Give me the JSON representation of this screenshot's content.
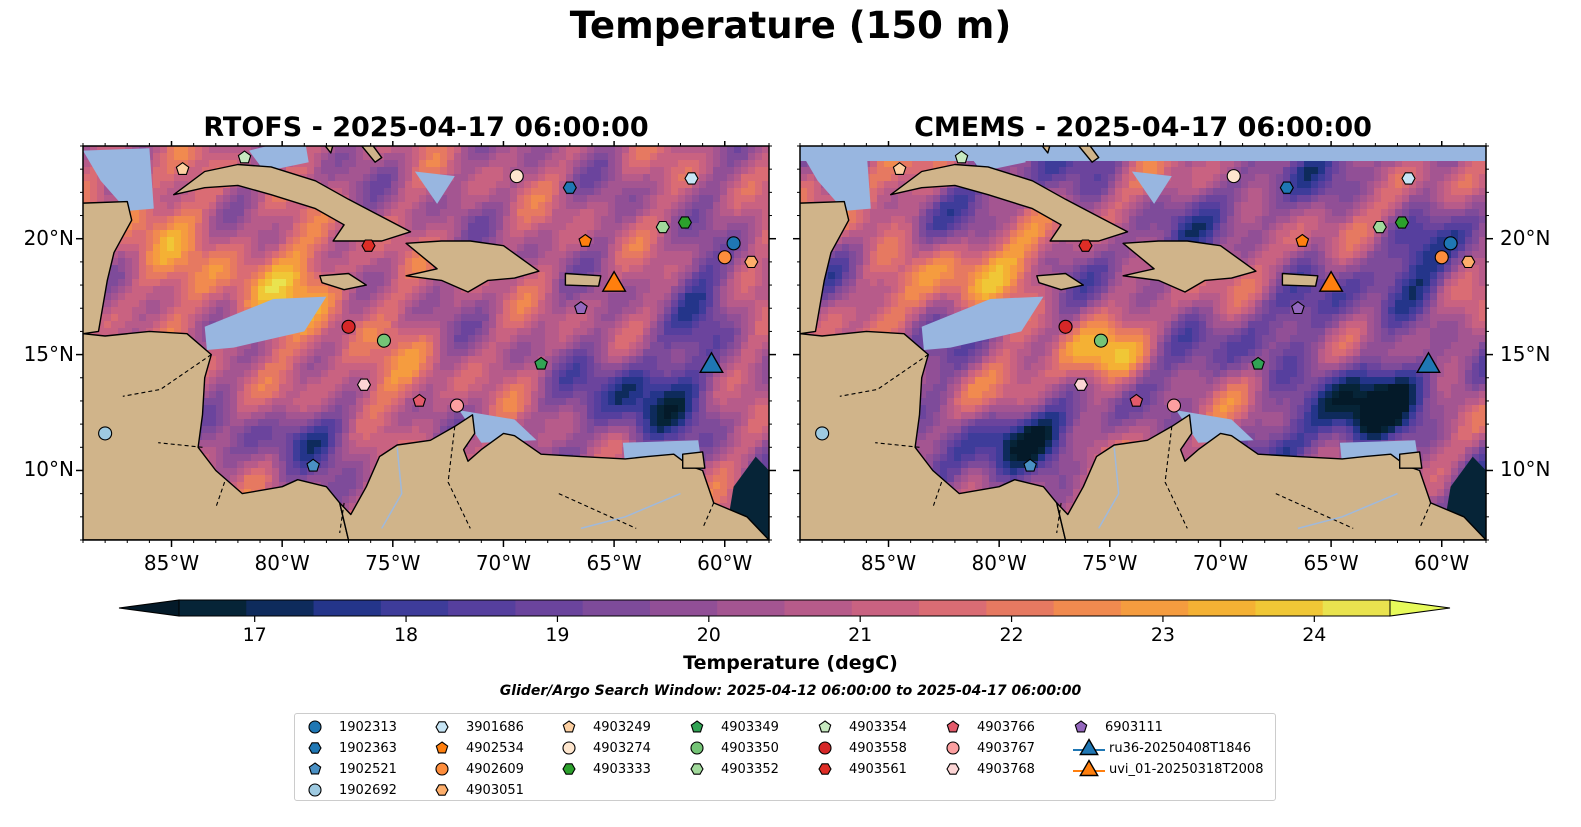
{
  "figure": {
    "suptitle": "Temperature (150 m)",
    "colorbar_label": "Temperature (degC)",
    "search_window": "Glider/Argo Search Window: 2025-04-12 06:00:00 to 2025-04-17 06:00:00"
  },
  "chart_data": [
    {
      "type": "heatmap",
      "title": "RTOFS - 2025-04-17 06:00:00",
      "x_ticks": [
        "85°W",
        "80°W",
        "75°W",
        "70°W",
        "65°W",
        "60°W"
      ],
      "y_ticks": [
        "20°N",
        "15°N",
        "10°N"
      ],
      "xlim": [
        -89,
        -58
      ],
      "ylim": [
        7,
        24
      ],
      "colormap": "thermal",
      "color_range": [
        16.5,
        24.5
      ],
      "grid": false
    },
    {
      "type": "heatmap",
      "title": "CMEMS - 2025-04-17 06:00:00",
      "x_ticks": [
        "85°W",
        "80°W",
        "75°W",
        "70°W",
        "65°W",
        "60°W"
      ],
      "y_ticks": [
        "20°N",
        "15°N",
        "10°N"
      ],
      "xlim": [
        -89,
        -58
      ],
      "ylim": [
        7,
        24
      ],
      "colormap": "thermal",
      "color_range": [
        16.5,
        24.5
      ],
      "grid": false
    }
  ],
  "colorbar": {
    "ticks": [
      "17",
      "18",
      "19",
      "20",
      "21",
      "22",
      "23",
      "24"
    ],
    "tick_values": [
      17,
      18,
      19,
      20,
      21,
      22,
      23,
      24
    ],
    "range": [
      16.5,
      24.5
    ],
    "colors": [
      "#062437",
      "#0e2b5c",
      "#24358a",
      "#3e3c9a",
      "#563f9e",
      "#6b449d",
      "#7e4b9a",
      "#914f96",
      "#a45591",
      "#b75b8a",
      "#c96281",
      "#da6c74",
      "#e67961",
      "#f18a4f",
      "#f59c3f",
      "#f4b134",
      "#f0c736",
      "#e9e34f"
    ],
    "extend_low": "#041a29",
    "extend_high": "#e7fa5a"
  },
  "map_colors": {
    "land": "#d0b48a",
    "shelf": "#98b6e0",
    "deep_cold": "#062437"
  },
  "legend": [
    {
      "name": "1902313",
      "marker": "circle",
      "color": "#1f77b4"
    },
    {
      "name": "1902363",
      "marker": "hexagon",
      "color": "#1f77b4"
    },
    {
      "name": "1902521",
      "marker": "pentagon",
      "color": "#4a90c4"
    },
    {
      "name": "1902692",
      "marker": "circle",
      "color": "#9ecae1"
    },
    {
      "name": "3901686",
      "marker": "hexagon",
      "color": "#c6e5f5"
    },
    {
      "name": "4902534",
      "marker": "pentagon",
      "color": "#ff7f0e"
    },
    {
      "name": "4902609",
      "marker": "circle",
      "color": "#fd8d3c"
    },
    {
      "name": "4903051",
      "marker": "hexagon",
      "color": "#fdae6b"
    },
    {
      "name": "4903249",
      "marker": "pentagon",
      "color": "#fdd0a2"
    },
    {
      "name": "4903274",
      "marker": "circle",
      "color": "#fee6ce"
    },
    {
      "name": "4903333",
      "marker": "hexagon",
      "color": "#2ca02c"
    },
    {
      "name": "4903349",
      "marker": "pentagon",
      "color": "#31a354"
    },
    {
      "name": "4903350",
      "marker": "circle",
      "color": "#74c476"
    },
    {
      "name": "4903352",
      "marker": "hexagon",
      "color": "#a1d99b"
    },
    {
      "name": "4903354",
      "marker": "pentagon",
      "color": "#c7e9c0"
    },
    {
      "name": "4903558",
      "marker": "circle",
      "color": "#d62728"
    },
    {
      "name": "4903561",
      "marker": "hexagon",
      "color": "#de2d26"
    },
    {
      "name": "4903766",
      "marker": "pentagon",
      "color": "#e35a6a"
    },
    {
      "name": "4903767",
      "marker": "circle",
      "color": "#fc9fa0"
    },
    {
      "name": "4903768",
      "marker": "hexagon",
      "color": "#fcd5d5"
    },
    {
      "name": "6903111",
      "marker": "pentagon",
      "color": "#9467bd"
    },
    {
      "name": "ru36-20250408T1846",
      "marker": "triangle",
      "color": "#1f77b4"
    },
    {
      "name": "uvi_01-20250318T2008",
      "marker": "triangle",
      "color": "#ff7f0e"
    }
  ],
  "markers": [
    {
      "id": "4903249",
      "lon": -84.5,
      "lat": 23.0
    },
    {
      "id": "4903354",
      "lon": -81.7,
      "lat": 23.5
    },
    {
      "id": "4903274",
      "lon": -69.4,
      "lat": 22.7
    },
    {
      "id": "1902363",
      "lon": -67.0,
      "lat": 22.2
    },
    {
      "id": "3901686",
      "lon": -61.5,
      "lat": 22.6
    },
    {
      "id": "4903352",
      "lon": -62.8,
      "lat": 20.5
    },
    {
      "id": "4903333",
      "lon": -61.8,
      "lat": 20.7
    },
    {
      "id": "1902313",
      "lon": -59.6,
      "lat": 19.8
    },
    {
      "id": "4902609",
      "lon": -60.0,
      "lat": 19.2
    },
    {
      "id": "4903051",
      "lon": -58.8,
      "lat": 19.0
    },
    {
      "id": "4902534",
      "lon": -66.3,
      "lat": 19.9
    },
    {
      "id": "4903561",
      "lon": -76.1,
      "lat": 19.7
    },
    {
      "id": "6903111",
      "lon": -66.5,
      "lat": 17.0
    },
    {
      "id": "4903558",
      "lon": -77.0,
      "lat": 16.2
    },
    {
      "id": "4903350",
      "lon": -75.4,
      "lat": 15.6
    },
    {
      "id": "4903349",
      "lon": -68.3,
      "lat": 14.6
    },
    {
      "id": "4903768",
      "lon": -76.3,
      "lat": 13.7
    },
    {
      "id": "4903766",
      "lon": -73.8,
      "lat": 13.0
    },
    {
      "id": "4903767",
      "lon": -72.1,
      "lat": 12.8
    },
    {
      "id": "1902692",
      "lon": -88.0,
      "lat": 11.6
    },
    {
      "id": "1902521",
      "lon": -78.6,
      "lat": 10.2
    },
    {
      "id": "uvi_01-20250318T2008",
      "lon": -65.0,
      "lat": 18.1
    },
    {
      "id": "ru36-20250408T1846",
      "lon": -60.6,
      "lat": 14.6
    }
  ]
}
